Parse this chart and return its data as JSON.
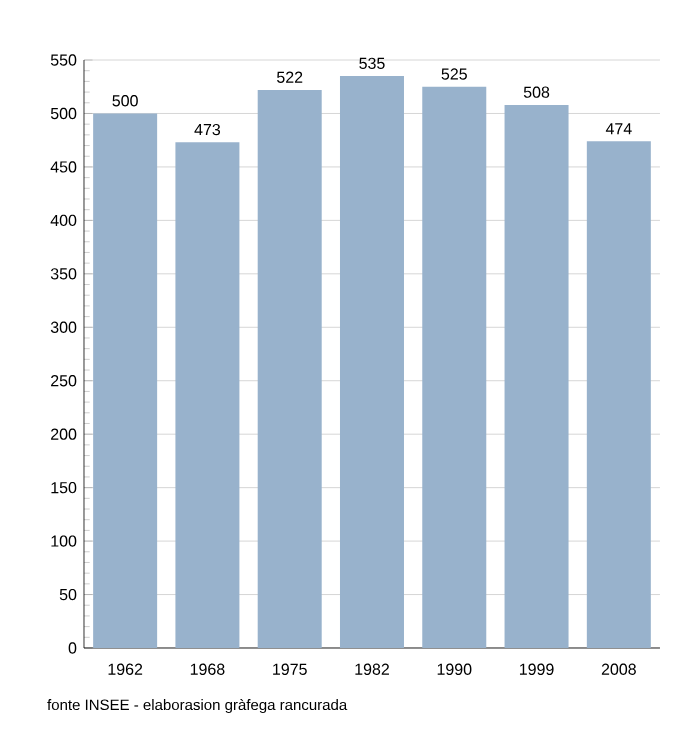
{
  "chart_data": {
    "type": "bar",
    "categories": [
      "1962",
      "1968",
      "1975",
      "1982",
      "1990",
      "1999",
      "2008"
    ],
    "values": [
      500,
      473,
      522,
      535,
      525,
      508,
      474
    ],
    "color": "#98b2cc",
    "ylim": [
      0,
      550
    ],
    "yticks": [
      0,
      50,
      100,
      150,
      200,
      250,
      300,
      350,
      400,
      450,
      500,
      550
    ],
    "grid": "y",
    "data_labels": true,
    "annotations": [
      "fonte INSEE - elaborasion gràfega rancurada"
    ]
  }
}
